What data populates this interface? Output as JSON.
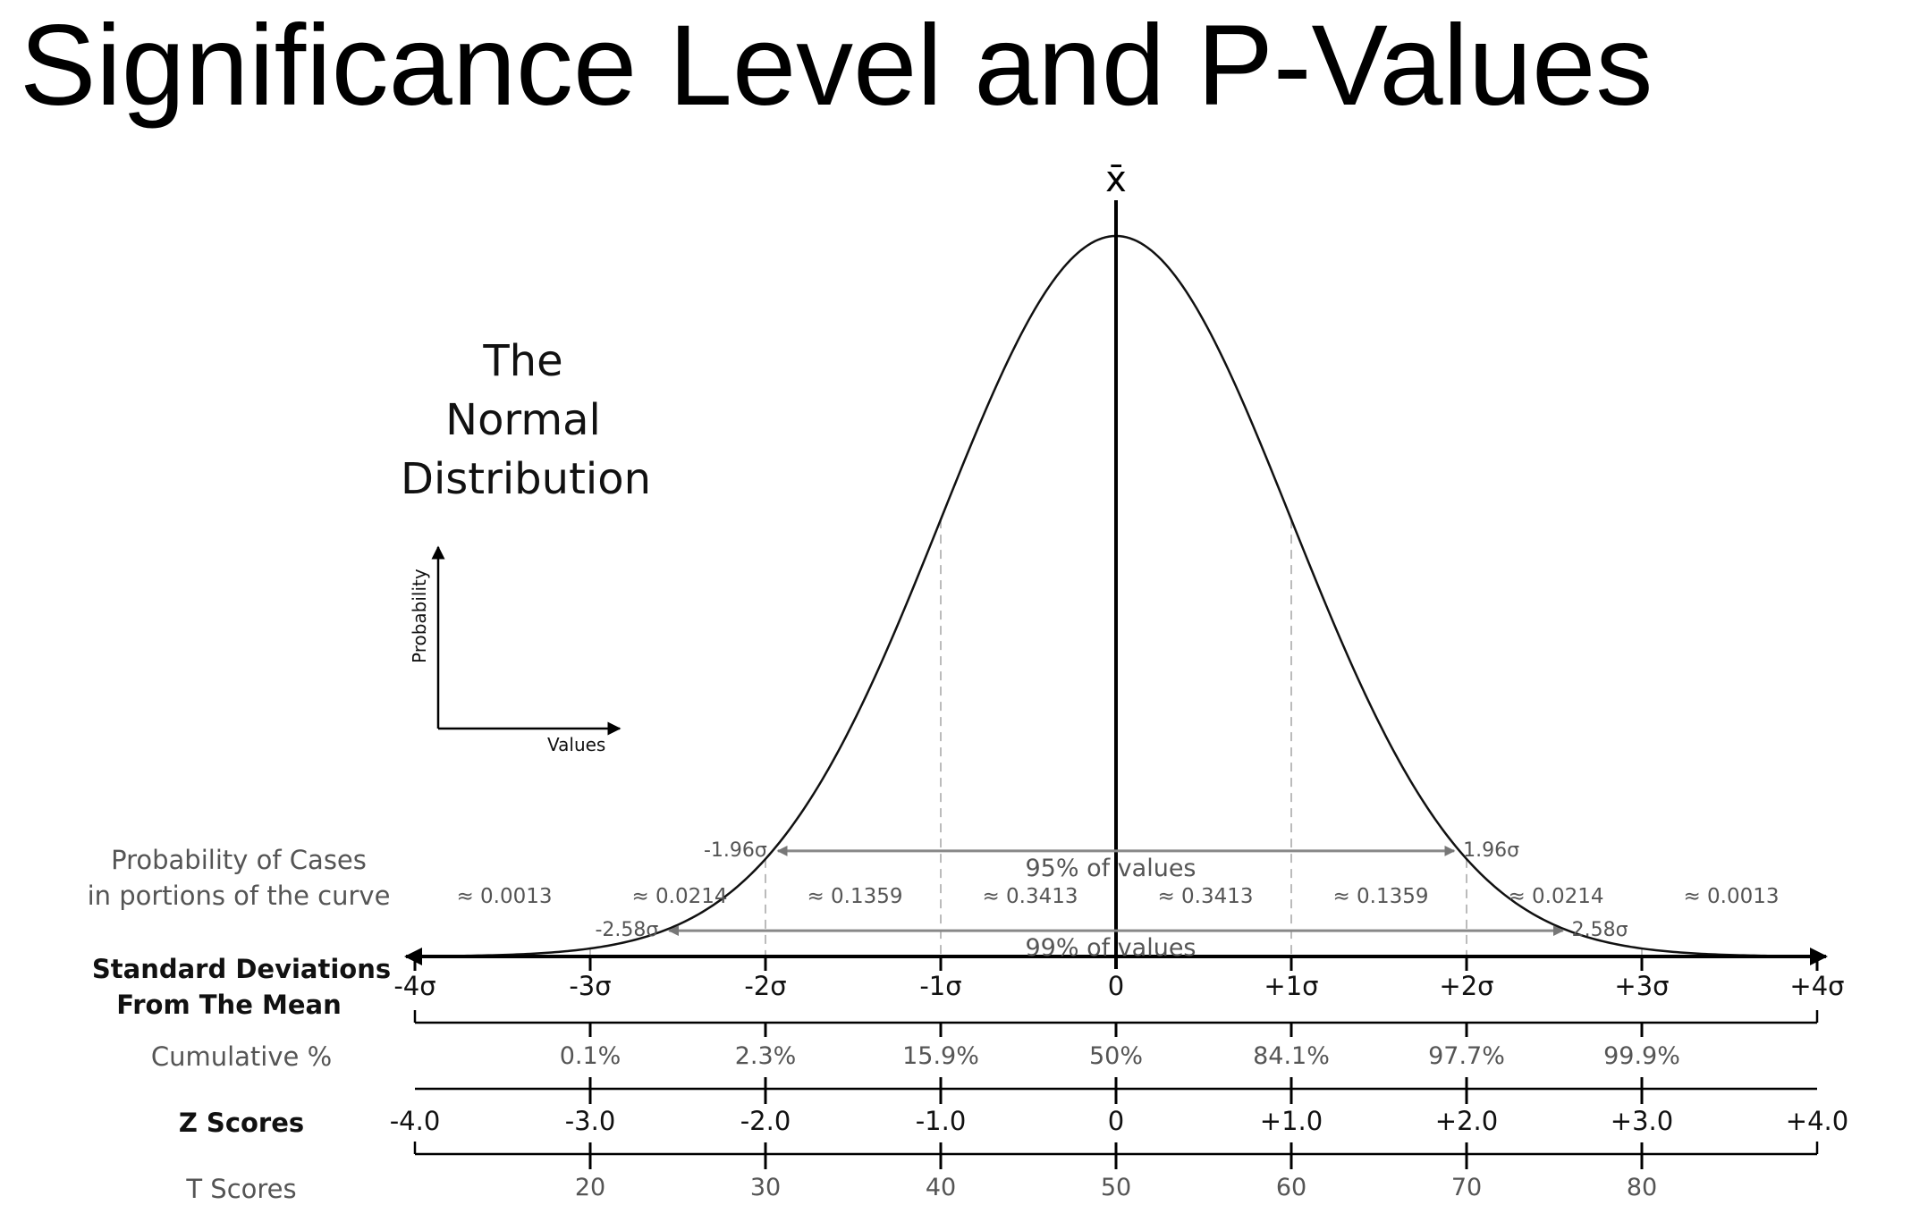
{
  "title": "Significance Level and P-Values",
  "chart_data": {
    "type": "area",
    "title": "The Normal Distribution",
    "title_lines": [
      "The",
      "Normal",
      "Distribution"
    ],
    "mean_symbol": "x̄",
    "inset_axes": {
      "ylabel": "Probability",
      "xlabel": "Values"
    },
    "xlim": [
      -4,
      4
    ],
    "grid": false,
    "curve": "normal density, mean 0, standard deviation 1",
    "intervals": [
      {
        "name": "95% of values",
        "from": -1.96,
        "to": 1.96,
        "left_label": "-1.96σ",
        "right_label": "1.96σ"
      },
      {
        "name": "99% of values",
        "from": -2.58,
        "to": 2.58,
        "left_label": "-2.58σ",
        "right_label": "2.58σ"
      }
    ],
    "portions": {
      "row_label": [
        "Probability of Cases",
        "in portions of the curve"
      ],
      "centers": [
        -3.5,
        -2.5,
        -1.5,
        -0.5,
        0.5,
        1.5,
        2.5,
        3.5
      ],
      "labels": [
        "≈ 0.0013",
        "≈ 0.0214",
        "≈ 0.1359",
        "≈ 0.3413",
        "≈ 0.3413",
        "≈ 0.1359",
        "≈ 0.0214",
        "≈ 0.0013"
      ],
      "values": [
        0.0013,
        0.0214,
        0.1359,
        0.3413,
        0.3413,
        0.1359,
        0.0214,
        0.0013
      ]
    },
    "scales": [
      {
        "name": "Standard Deviations From The Mean",
        "label_lines": [
          "Standard Deviations",
          "From The Mean"
        ],
        "positions": [
          -4,
          -3,
          -2,
          -1,
          0,
          1,
          2,
          3,
          4
        ],
        "tick_labels": [
          "-4σ",
          "-3σ",
          "-2σ",
          "-1σ",
          "0",
          "+1σ",
          "+2σ",
          "+3σ",
          "+4σ"
        ]
      },
      {
        "name": "Cumulative %",
        "label_lines": [
          "Cumulative %"
        ],
        "positions": [
          -3,
          -2,
          -1,
          0,
          1,
          2,
          3
        ],
        "tick_labels": [
          "0.1%",
          "2.3%",
          "15.9%",
          "50%",
          "84.1%",
          "97.7%",
          "99.9%"
        ],
        "values": [
          0.1,
          2.3,
          15.9,
          50,
          84.1,
          97.7,
          99.9
        ]
      },
      {
        "name": "Z Scores",
        "label_lines": [
          "Z Scores"
        ],
        "positions": [
          -4,
          -3,
          -2,
          -1,
          0,
          1,
          2,
          3,
          4
        ],
        "tick_labels": [
          "-4.0",
          "-3.0",
          "-2.0",
          "-1.0",
          "0",
          "+1.0",
          "+2.0",
          "+3.0",
          "+4.0"
        ]
      },
      {
        "name": "T Scores",
        "label_lines": [
          "T Scores"
        ],
        "positions": [
          -3,
          -2,
          -1,
          0,
          1,
          2,
          3
        ],
        "tick_labels": [
          "20",
          "30",
          "40",
          "50",
          "60",
          "70",
          "80"
        ],
        "values": [
          20,
          30,
          40,
          50,
          60,
          70,
          80
        ]
      }
    ]
  }
}
